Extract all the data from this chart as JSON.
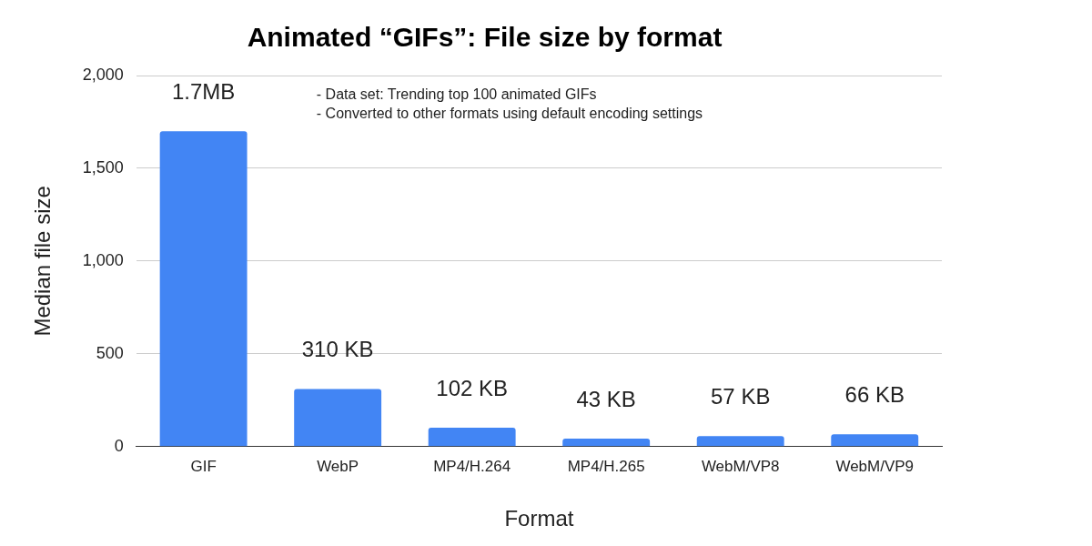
{
  "chart_data": {
    "type": "bar",
    "title": "Animated “GIFs”: File size by format",
    "xlabel": "Format",
    "ylabel": "Median file size",
    "categories": [
      "GIF",
      "WebP",
      "MP4/H.264",
      "MP4/H.265",
      "WebM/VP8",
      "WebM/VP9"
    ],
    "values": [
      1700,
      310,
      102,
      43,
      57,
      66
    ],
    "value_labels": [
      null,
      "310 KB",
      "102 KB",
      "43 KB",
      "57 KB",
      "66 KB"
    ],
    "color": "#4285f4",
    "ylim": [
      0,
      2000
    ],
    "yticks": [
      {
        "value": 0,
        "label": "0"
      },
      {
        "value": 500,
        "label": "500"
      },
      {
        "value": 1000,
        "label": "1,000"
      },
      {
        "value": 1500,
        "label": "1,500"
      },
      {
        "value": 2000,
        "label": "2,000"
      }
    ],
    "grid": "y",
    "annotations": [
      {
        "text": "1.7MB",
        "x": "GIF",
        "y": 1700
      },
      "- Data set: Trending top 100 animated GIFs",
      "- Converted to other formats using default encoding settings"
    ]
  }
}
